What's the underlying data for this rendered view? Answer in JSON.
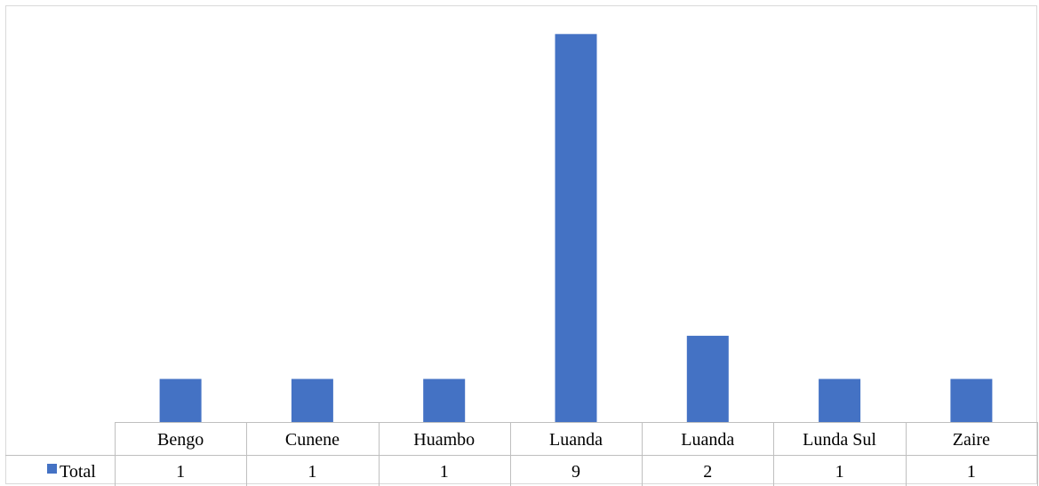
{
  "chart_data": {
    "type": "bar",
    "categories": [
      "Bengo",
      "Cunene",
      "Huambo",
      "Luanda",
      "Luanda",
      "Lunda Sul",
      "Zaire"
    ],
    "series": [
      {
        "name": "Total",
        "values": [
          1,
          1,
          1,
          9,
          2,
          1,
          1
        ]
      }
    ],
    "data_table": true,
    "legend_placement": "data-table-left",
    "grid": false,
    "ylim": [
      0,
      9.5
    ]
  },
  "colors": {
    "bar": "#4472C4",
    "frame": "#d9d9d9",
    "table_lines": "#bfbfbf",
    "text": "#000000"
  }
}
